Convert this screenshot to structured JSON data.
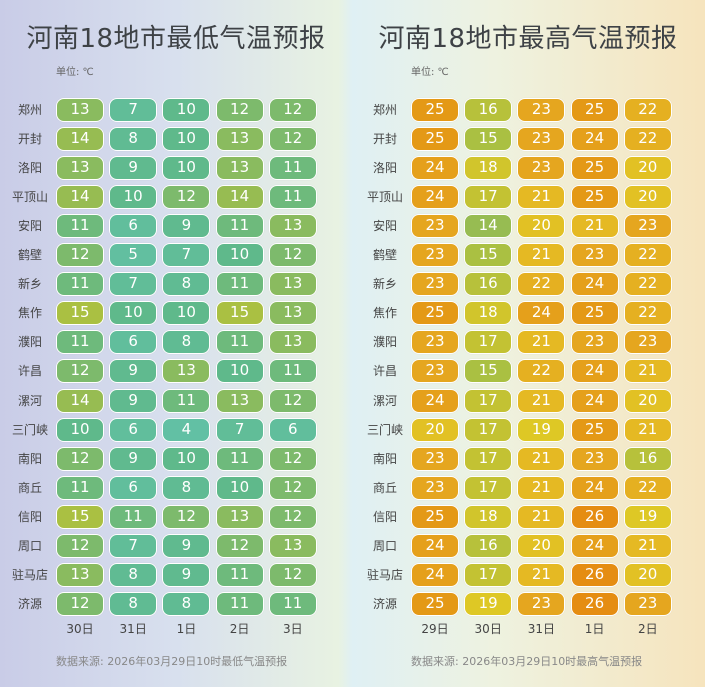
{
  "chart_data": [
    {
      "type": "heatmap",
      "title": "河南18地市最低气温预报",
      "unit": "单位: ℃",
      "rows": [
        "郑州",
        "开封",
        "洛阳",
        "平顶山",
        "安阳",
        "鹤壁",
        "新乡",
        "焦作",
        "濮阳",
        "许昌",
        "漯河",
        "三门峡",
        "南阳",
        "商丘",
        "信阳",
        "周口",
        "驻马店",
        "济源"
      ],
      "columns": [
        "30日",
        "31日",
        "1日",
        "2日",
        "3日"
      ],
      "values": [
        [
          13,
          7,
          10,
          12,
          12
        ],
        [
          14,
          8,
          10,
          13,
          12
        ],
        [
          13,
          9,
          10,
          13,
          11
        ],
        [
          14,
          10,
          12,
          14,
          11
        ],
        [
          11,
          6,
          9,
          11,
          13
        ],
        [
          12,
          5,
          7,
          10,
          12
        ],
        [
          11,
          7,
          8,
          11,
          13
        ],
        [
          15,
          10,
          10,
          15,
          13
        ],
        [
          11,
          6,
          8,
          11,
          13
        ],
        [
          12,
          9,
          13,
          10,
          11
        ],
        [
          14,
          9,
          11,
          13,
          12
        ],
        [
          10,
          6,
          4,
          7,
          6
        ],
        [
          12,
          9,
          10,
          11,
          12
        ],
        [
          11,
          6,
          8,
          10,
          12
        ],
        [
          15,
          11,
          12,
          13,
          12
        ],
        [
          12,
          7,
          9,
          12,
          13
        ],
        [
          13,
          8,
          9,
          11,
          12
        ],
        [
          12,
          8,
          8,
          11,
          11
        ]
      ],
      "source": "数据来源: 2026年03月29日10时最低气温预报"
    },
    {
      "type": "heatmap",
      "title": "河南18地市最高气温预报",
      "unit": "单位: ℃",
      "rows": [
        "郑州",
        "开封",
        "洛阳",
        "平顶山",
        "安阳",
        "鹤壁",
        "新乡",
        "焦作",
        "濮阳",
        "许昌",
        "漯河",
        "三门峡",
        "南阳",
        "商丘",
        "信阳",
        "周口",
        "驻马店",
        "济源"
      ],
      "columns": [
        "29日",
        "30日",
        "31日",
        "1日",
        "2日"
      ],
      "values": [
        [
          25,
          16,
          23,
          25,
          22
        ],
        [
          25,
          15,
          23,
          24,
          22
        ],
        [
          24,
          18,
          23,
          25,
          20
        ],
        [
          24,
          17,
          21,
          25,
          20
        ],
        [
          23,
          14,
          20,
          21,
          23
        ],
        [
          23,
          15,
          21,
          23,
          22
        ],
        [
          23,
          16,
          22,
          24,
          22
        ],
        [
          25,
          18,
          24,
          25,
          22
        ],
        [
          23,
          17,
          21,
          23,
          23
        ],
        [
          23,
          15,
          22,
          24,
          21
        ],
        [
          24,
          17,
          21,
          24,
          20
        ],
        [
          20,
          17,
          19,
          25,
          21
        ],
        [
          23,
          17,
          21,
          23,
          16
        ],
        [
          23,
          17,
          21,
          24,
          22
        ],
        [
          25,
          18,
          21,
          26,
          19
        ],
        [
          24,
          16,
          20,
          24,
          21
        ],
        [
          24,
          17,
          21,
          26,
          20
        ],
        [
          25,
          19,
          23,
          26,
          23
        ]
      ],
      "source": "数据来源: 2026年03月29日10时最高气温预报"
    }
  ],
  "color_scale": [
    [
      4,
      "#62c0a4"
    ],
    [
      10,
      "#5fb98b"
    ],
    [
      12,
      "#7dba6c"
    ],
    [
      14,
      "#97bc52"
    ],
    [
      15,
      "#aac042"
    ],
    [
      17,
      "#c3c233"
    ],
    [
      19,
      "#dec825"
    ],
    [
      21,
      "#e5b923"
    ],
    [
      23,
      "#e5a61f"
    ],
    [
      25,
      "#e49916"
    ],
    [
      26,
      "#e58d12"
    ]
  ]
}
